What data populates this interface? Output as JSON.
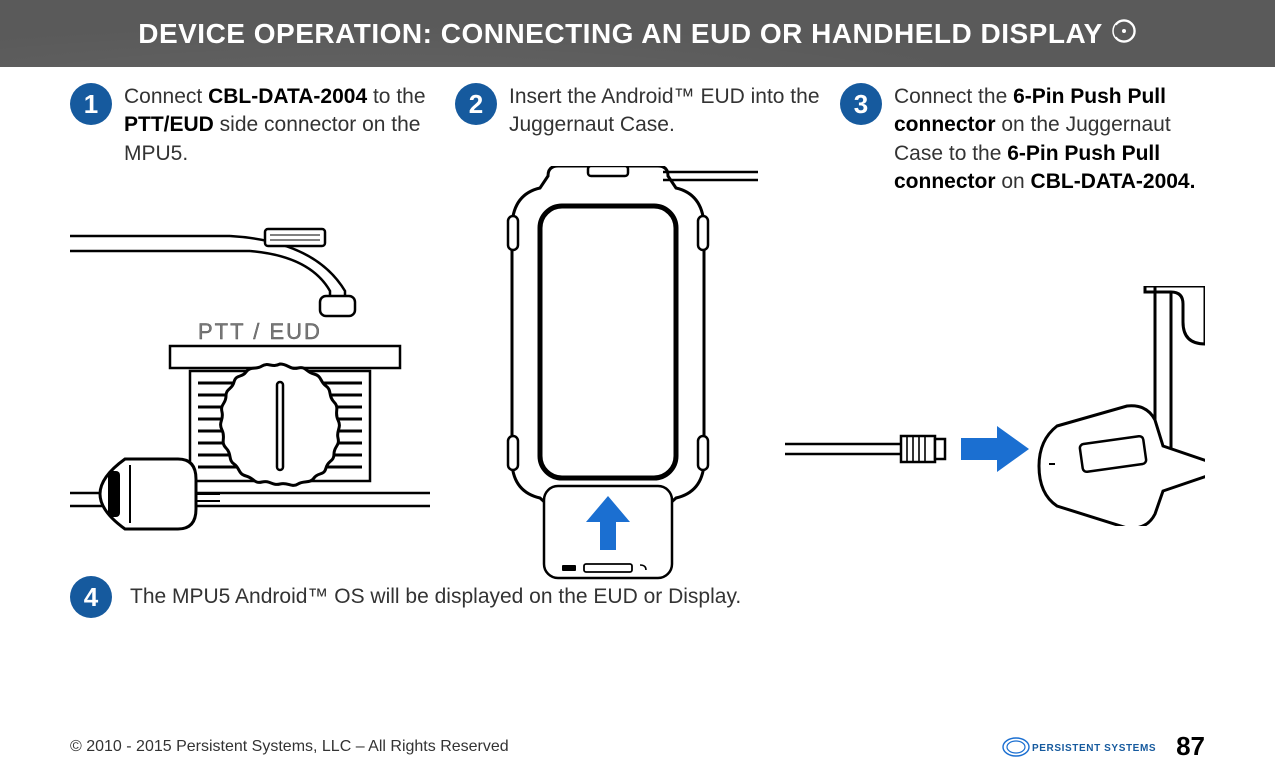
{
  "header": {
    "title": "DEVICE OPERATION:  CONNECTING AN EUD OR HANDHELD DISPLAY",
    "band_color": "#5a5a5a",
    "title_color": "#ffffff",
    "title_fontsize": 28
  },
  "accent_color": "#165a9e",
  "arrow_color": "#1b6fd1",
  "steps": [
    {
      "num": "1",
      "html": "Connect <b>CBL-DATA-2004</b> to the <b>PTT/EUD</b> side con­nector on the MPU5."
    },
    {
      "num": "2",
      "html": "Insert the Android™ EUD into the Juggernaut Case."
    },
    {
      "num": "3",
      "html": "Connect the <b>6-Pin Push Pull connector</b> on the Juggernaut Case to the <b>6-Pin Push Pull connec­tor</b> on <b>CBL-DATA-2004.</b>"
    }
  ],
  "step4": {
    "num": "4",
    "text": "The MPU5 Android™ OS will be displayed on the EUD or Display."
  },
  "illus1": {
    "ptt_label": "PTT / EUD"
  },
  "footer": {
    "copyright": "© 2010 - 2015 Persistent Systems, LLC – All Rights Reserved",
    "brand_text": "PERSISTENT SYSTEMS",
    "page": "87"
  },
  "style": {
    "body_fontsize": 21,
    "badge_diameter": 42,
    "line_stroke": "#000000",
    "line_width": 2
  }
}
